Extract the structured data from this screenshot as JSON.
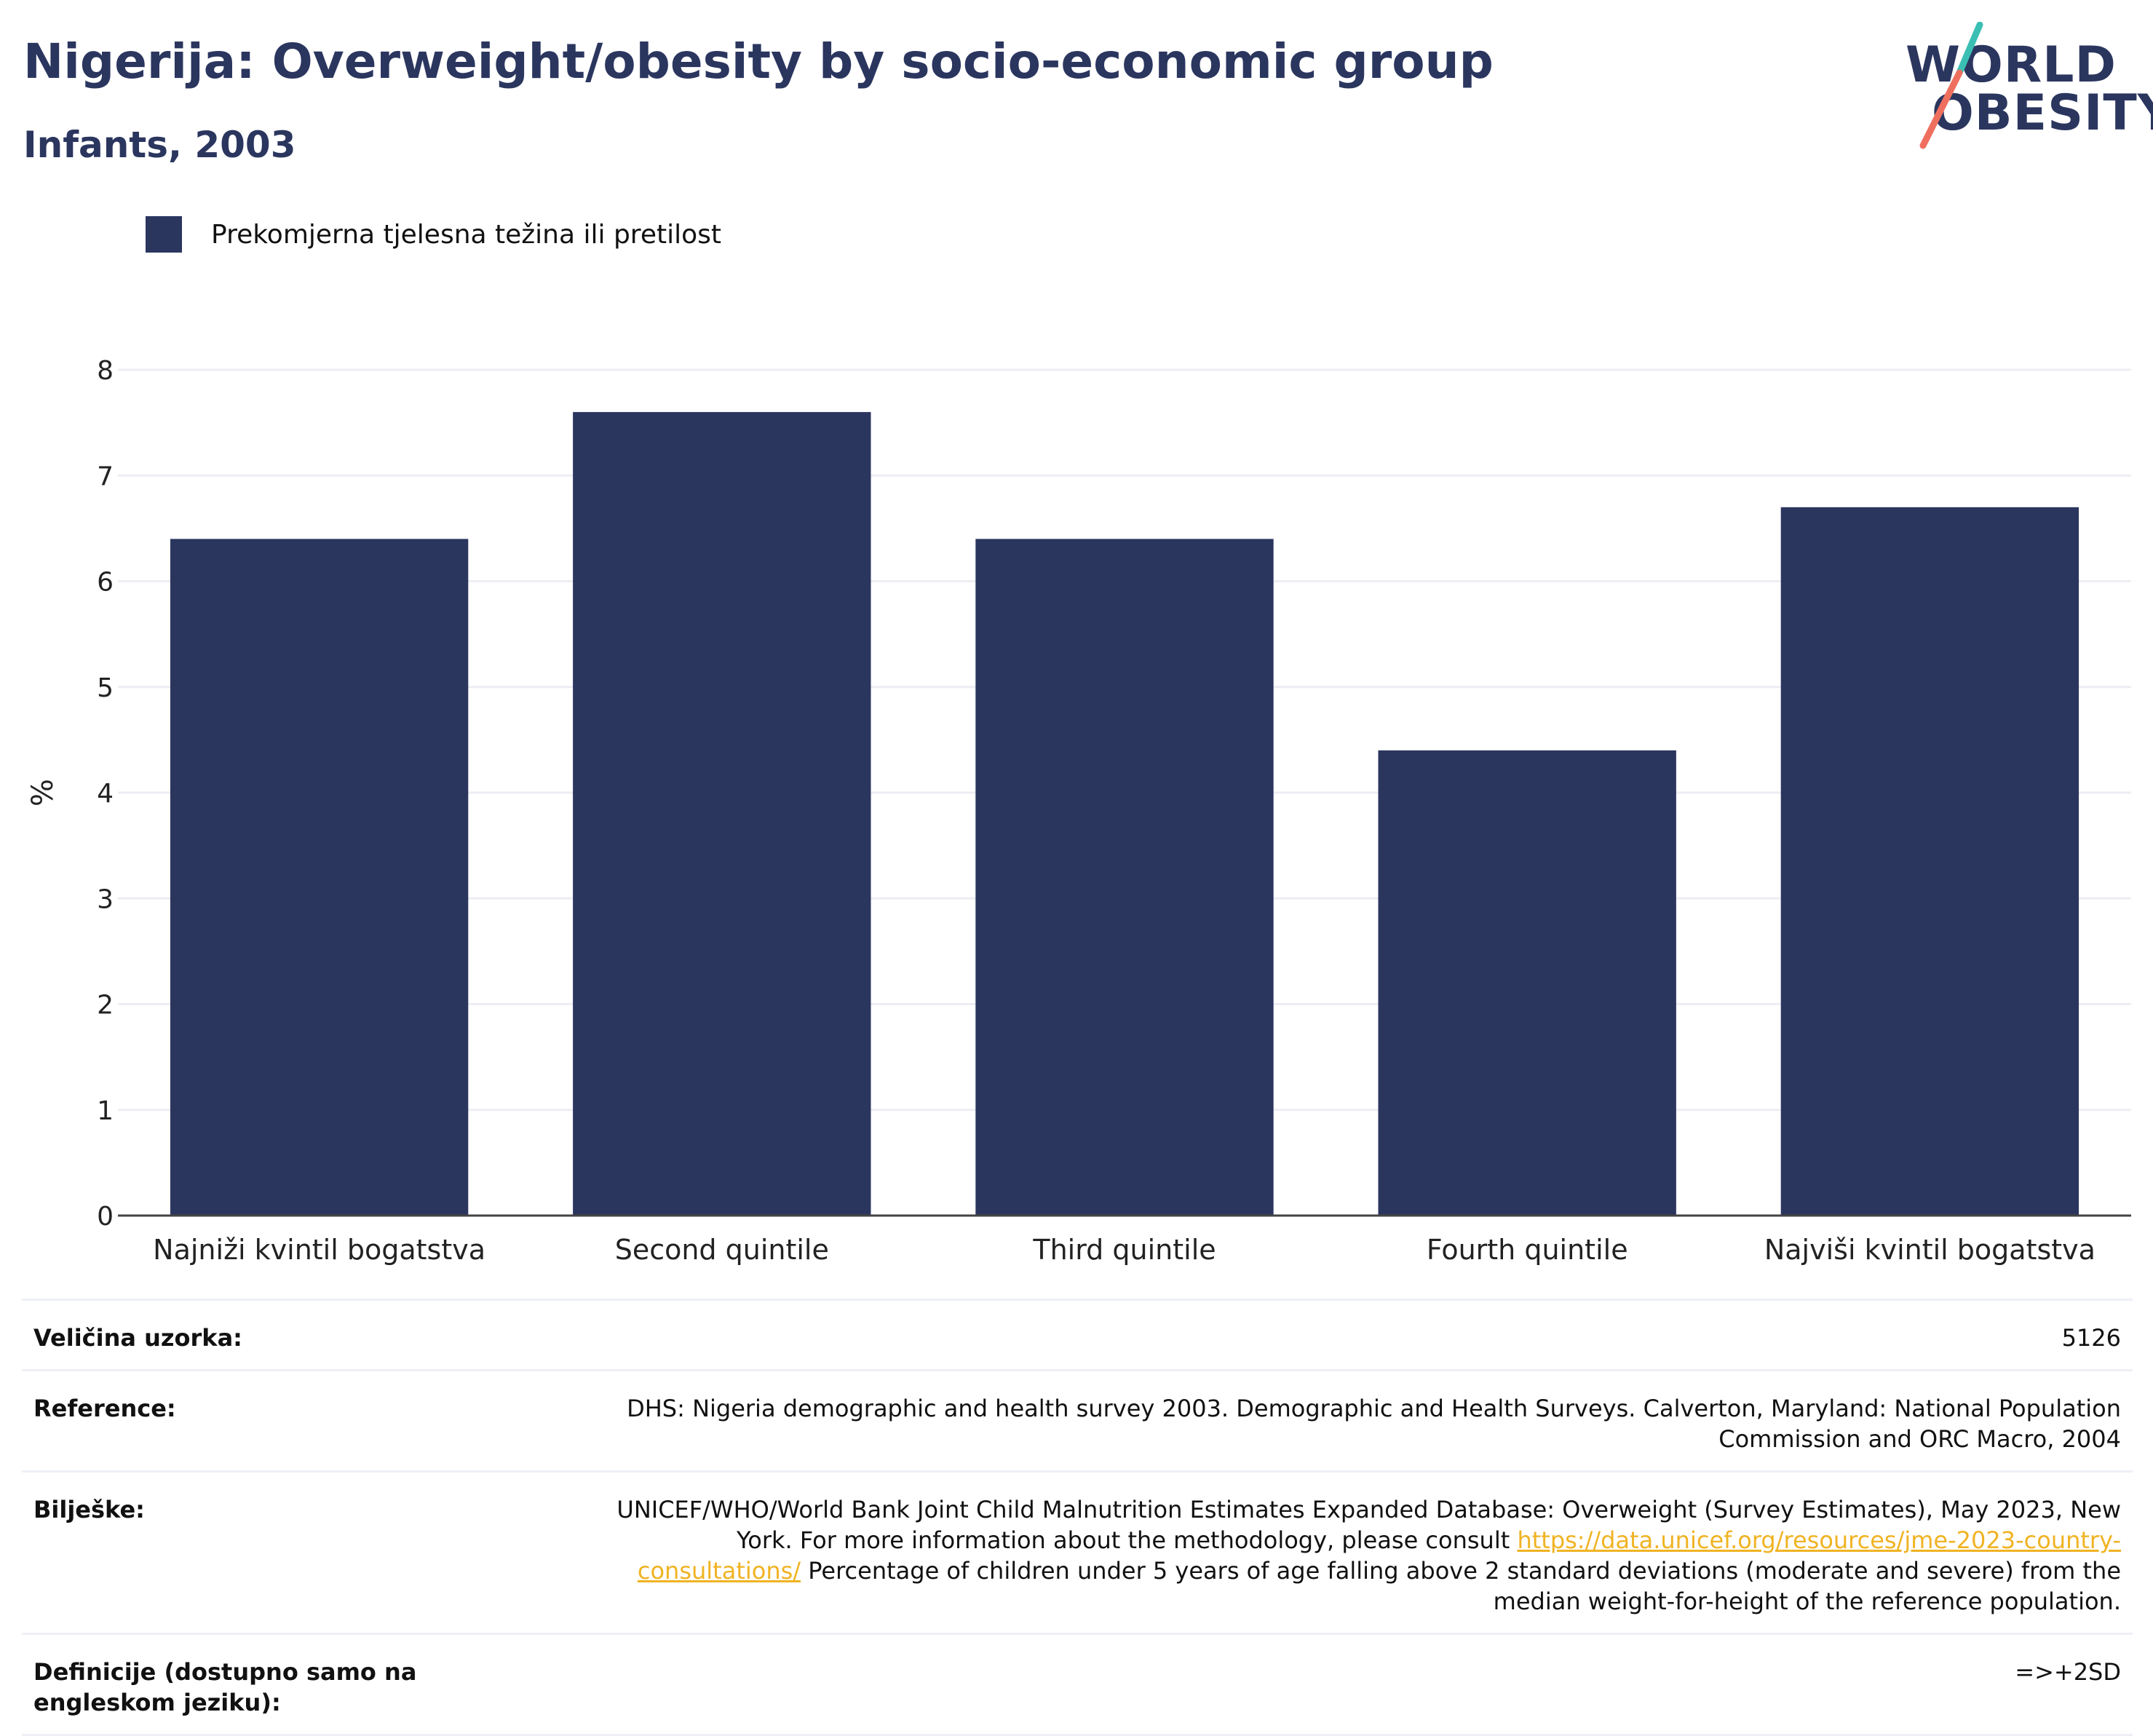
{
  "header": {
    "title": "Nigerija: Overweight/obesity by socio-economic group",
    "subtitle": "Infants, 2003"
  },
  "logo": {
    "line1": "WORLD",
    "line2": "OBESITY",
    "accent_teal": "#3bbfb4",
    "accent_coral": "#ef6f5e"
  },
  "legend": {
    "label": "Prekomjerna tjelesna težina ili pretilost",
    "color": "#2b365f"
  },
  "chart_data": {
    "type": "bar",
    "categories": [
      "Najniži kvintil bogatstva",
      "Second quintile",
      "Third quintile",
      "Fourth quintile",
      "Najviši kvintil bogatstva"
    ],
    "series": [
      {
        "name": "Prekomjerna tjelesna težina ili pretilost",
        "values": [
          6.4,
          7.6,
          6.4,
          4.4,
          6.7
        ],
        "color": "#2b365f"
      }
    ],
    "ylabel": "%",
    "ylim": [
      0,
      8
    ],
    "yticks": [
      0,
      1,
      2,
      3,
      4,
      5,
      6,
      7,
      8
    ],
    "grid": true
  },
  "info": {
    "sample_size": {
      "label": "Veličina uzorka:",
      "value": "5126"
    },
    "reference": {
      "label": "Reference:",
      "value": "DHS: Nigeria demographic and health survey 2003. Demographic and Health Surveys. Calverton, Maryland: National Population Commission and ORC Macro, 2004"
    },
    "notes": {
      "label": "Bilješke:",
      "text_before": "UNICEF/WHO/World Bank Joint Child Malnutrition Estimates Expanded Database: Overweight (Survey Estimates), May 2023, New York. For more information about the methodology, please consult ",
      "link": "https://data.unicef.org/resources/jme-2023-country-consultations/",
      "text_after": " Percentage of children under 5 years of age falling above 2 standard deviations (moderate and severe) from the median weight-for-height of the reference population."
    },
    "definitions": {
      "label": "Definicije (dostupno samo na engleskom jeziku):",
      "value": "=>+2SD"
    }
  }
}
